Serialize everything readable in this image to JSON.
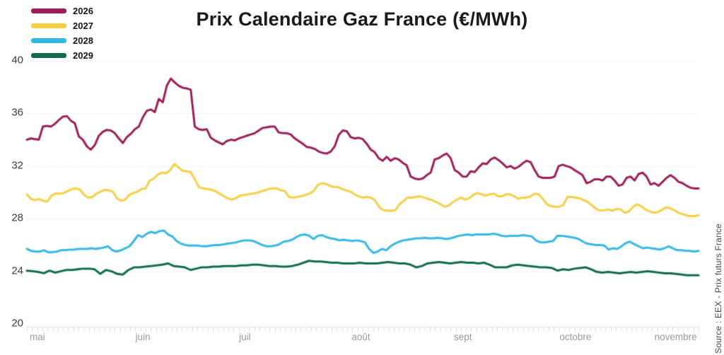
{
  "source": "Source : EEX - Prix futurs France",
  "chart_data": {
    "type": "line",
    "title": "Prix Calendaire Gaz France (€/MWh)",
    "xlabel": "",
    "ylabel": "",
    "ylim": [
      20,
      40
    ],
    "yticks": [
      40,
      36,
      32,
      28,
      24,
      20
    ],
    "grid": true,
    "legend_position": "top-left",
    "x_axis": {
      "unit": "jours depuis le 1er mai",
      "range": [
        0,
        191
      ],
      "minor_tick_count": 130,
      "month_labels": [
        {
          "label": "mai",
          "day": 3
        },
        {
          "label": "juin",
          "day": 33
        },
        {
          "label": "juil",
          "day": 62
        },
        {
          "label": "août",
          "day": 95
        },
        {
          "label": "sept",
          "day": 124
        },
        {
          "label": "octobre",
          "day": 156
        },
        {
          "label": "novembre",
          "day": 184.5
        }
      ]
    },
    "series": [
      {
        "name": "2026",
        "color": "#9C1D58",
        "values": [
          34.0,
          34.1,
          34.05,
          34.0,
          35.0,
          35.05,
          35.0,
          35.2,
          35.5,
          35.75,
          35.8,
          35.45,
          35.25,
          34.25,
          34.0,
          33.5,
          33.25,
          33.6,
          34.3,
          34.6,
          34.75,
          34.7,
          34.5,
          34.1,
          33.75,
          34.2,
          34.45,
          34.8,
          35.0,
          35.7,
          36.2,
          36.3,
          36.1,
          37.1,
          36.85,
          38.1,
          38.65,
          38.35,
          38.1,
          37.95,
          37.9,
          37.8,
          35.0,
          34.8,
          34.75,
          34.8,
          34.15,
          33.95,
          33.8,
          33.65,
          33.9,
          34.0,
          33.95,
          34.1,
          34.2,
          34.3,
          34.4,
          34.5,
          34.7,
          34.9,
          34.95,
          35.0,
          35.0,
          34.55,
          34.5,
          34.5,
          34.4,
          34.1,
          33.9,
          33.7,
          33.45,
          33.4,
          33.3,
          33.1,
          33.0,
          32.95,
          33.1,
          33.5,
          34.35,
          34.7,
          34.65,
          34.2,
          34.1,
          34.15,
          34.05,
          33.7,
          33.25,
          33.05,
          32.6,
          32.4,
          32.7,
          32.4,
          32.6,
          32.5,
          32.25,
          32.05,
          31.2,
          31.05,
          31.0,
          31.05,
          31.3,
          31.5,
          32.5,
          32.6,
          32.8,
          32.95,
          32.6,
          31.7,
          31.5,
          31.2,
          31.2,
          31.6,
          31.55,
          31.9,
          32.2,
          32.15,
          32.5,
          32.65,
          32.45,
          32.2,
          31.9,
          32.0,
          31.8,
          31.95,
          32.2,
          32.4,
          32.3,
          31.7,
          31.2,
          31.1,
          31.1,
          31.1,
          31.2,
          32.0,
          32.1,
          32.0,
          31.9,
          31.7,
          31.5,
          31.3,
          30.7,
          30.8,
          31.0,
          31.0,
          30.9,
          31.2,
          31.2,
          30.9,
          30.5,
          30.6,
          31.1,
          31.2,
          30.9,
          31.4,
          31.5,
          31.2,
          30.6,
          30.7,
          30.5,
          30.8,
          31.1,
          31.3,
          31.1,
          30.8,
          30.7,
          30.5,
          30.35,
          30.3,
          30.3
        ]
      },
      {
        "name": "2027",
        "color": "#F7CE43",
        "values": [
          29.85,
          29.5,
          29.4,
          29.5,
          29.35,
          29.3,
          29.75,
          29.9,
          29.9,
          29.95,
          30.1,
          30.25,
          30.3,
          30.2,
          29.8,
          29.6,
          29.65,
          29.9,
          30.05,
          30.2,
          30.15,
          30.05,
          29.55,
          29.35,
          29.45,
          29.8,
          29.95,
          30.05,
          30.25,
          30.3,
          30.9,
          31.05,
          31.35,
          31.5,
          31.45,
          31.7,
          32.15,
          31.9,
          31.65,
          31.6,
          31.55,
          31.0,
          30.4,
          30.3,
          30.25,
          30.2,
          30.1,
          29.9,
          29.75,
          29.55,
          29.45,
          29.55,
          29.75,
          29.8,
          29.85,
          29.9,
          29.95,
          30.05,
          30.15,
          30.25,
          30.3,
          30.3,
          30.15,
          30.1,
          29.65,
          29.6,
          29.65,
          29.7,
          29.8,
          29.9,
          30.1,
          30.55,
          30.7,
          30.65,
          30.5,
          30.4,
          30.4,
          30.25,
          30.15,
          30.05,
          29.85,
          29.7,
          29.6,
          29.65,
          29.6,
          29.4,
          28.9,
          28.65,
          28.6,
          28.6,
          28.65,
          29.1,
          29.35,
          29.6,
          29.6,
          29.65,
          29.7,
          29.6,
          29.5,
          29.4,
          29.25,
          29.1,
          28.9,
          29.0,
          29.25,
          29.45,
          29.6,
          29.45,
          29.55,
          29.8,
          29.95,
          29.85,
          29.75,
          29.85,
          29.9,
          29.7,
          29.7,
          29.85,
          29.85,
          29.7,
          29.5,
          29.6,
          29.6,
          29.7,
          29.9,
          29.85,
          29.5,
          29.1,
          28.95,
          28.9,
          28.9,
          29.05,
          29.65,
          29.65,
          29.6,
          29.55,
          29.4,
          29.25,
          29.0,
          28.75,
          28.6,
          28.65,
          28.7,
          28.6,
          28.75,
          28.7,
          28.45,
          28.55,
          28.9,
          29.1,
          28.95,
          28.7,
          28.55,
          28.45,
          28.5,
          28.65,
          28.85,
          28.8,
          28.65,
          28.45,
          28.35,
          28.25,
          28.2,
          28.2,
          28.25
        ]
      },
      {
        "name": "2028",
        "color": "#33B7E8",
        "values": [
          25.7,
          25.55,
          25.5,
          25.5,
          25.6,
          25.45,
          25.45,
          25.5,
          25.6,
          25.6,
          25.65,
          25.65,
          25.7,
          25.7,
          25.7,
          25.75,
          25.7,
          25.75,
          25.8,
          25.9,
          25.6,
          25.5,
          25.6,
          25.75,
          25.9,
          26.3,
          26.75,
          26.6,
          26.85,
          27.0,
          26.9,
          27.05,
          27.1,
          26.8,
          26.65,
          26.3,
          26.1,
          26.0,
          25.95,
          25.95,
          25.95,
          25.9,
          25.9,
          25.95,
          26.0,
          26.0,
          26.05,
          26.1,
          26.15,
          26.2,
          26.3,
          26.35,
          26.35,
          26.3,
          26.15,
          26.0,
          25.9,
          25.9,
          25.95,
          26.05,
          26.25,
          26.3,
          26.4,
          26.6,
          26.75,
          26.8,
          26.7,
          26.45,
          26.7,
          26.75,
          26.6,
          26.5,
          26.45,
          26.35,
          26.4,
          26.35,
          26.3,
          26.35,
          26.3,
          26.2,
          25.7,
          25.4,
          25.5,
          25.7,
          25.6,
          25.9,
          26.1,
          26.25,
          26.35,
          26.4,
          26.45,
          26.5,
          26.5,
          26.55,
          26.5,
          26.5,
          26.55,
          26.5,
          26.45,
          26.5,
          26.6,
          26.7,
          26.75,
          26.8,
          26.75,
          26.8,
          26.8,
          26.8,
          26.8,
          26.85,
          26.8,
          26.7,
          26.65,
          26.7,
          26.7,
          26.7,
          26.75,
          26.7,
          26.65,
          26.35,
          26.2,
          26.2,
          26.25,
          26.3,
          26.7,
          26.7,
          26.65,
          26.6,
          26.55,
          26.45,
          26.25,
          26.1,
          26.05,
          26.0,
          26.0,
          25.95,
          25.65,
          25.75,
          25.7,
          25.9,
          26.15,
          26.25,
          26.05,
          25.9,
          25.75,
          25.8,
          25.75,
          25.7,
          25.65,
          25.75,
          25.9,
          25.75,
          25.6,
          25.6,
          25.55,
          25.55,
          25.5,
          25.55
        ]
      },
      {
        "name": "2029",
        "color": "#116B4D",
        "values": [
          24.05,
          24.0,
          23.95,
          23.85,
          24.05,
          23.9,
          24.0,
          24.1,
          24.1,
          24.15,
          24.2,
          24.2,
          24.15,
          23.8,
          24.1,
          24.0,
          23.8,
          23.75,
          24.1,
          24.3,
          24.3,
          24.35,
          24.4,
          24.45,
          24.5,
          24.6,
          24.4,
          24.35,
          24.3,
          24.1,
          24.2,
          24.3,
          24.3,
          24.35,
          24.35,
          24.4,
          24.4,
          24.4,
          24.45,
          24.45,
          24.5,
          24.5,
          24.45,
          24.4,
          24.4,
          24.35,
          24.35,
          24.4,
          24.5,
          24.65,
          24.8,
          24.75,
          24.75,
          24.7,
          24.65,
          24.65,
          24.6,
          24.6,
          24.6,
          24.65,
          24.6,
          24.6,
          24.6,
          24.65,
          24.7,
          24.65,
          24.6,
          24.6,
          24.5,
          24.3,
          24.4,
          24.6,
          24.65,
          24.7,
          24.65,
          24.6,
          24.65,
          24.7,
          24.65,
          24.65,
          24.6,
          24.65,
          24.5,
          24.3,
          24.3,
          24.3,
          24.45,
          24.5,
          24.45,
          24.4,
          24.35,
          24.3,
          24.3,
          24.25,
          24.05,
          24.15,
          24.1,
          24.2,
          24.25,
          24.3,
          24.15,
          23.95,
          23.9,
          23.95,
          23.9,
          23.85,
          23.9,
          23.95,
          23.9,
          23.95,
          24.0,
          23.95,
          23.9,
          23.85,
          23.85,
          23.8,
          23.75,
          23.7,
          23.7,
          23.7
        ]
      }
    ]
  }
}
